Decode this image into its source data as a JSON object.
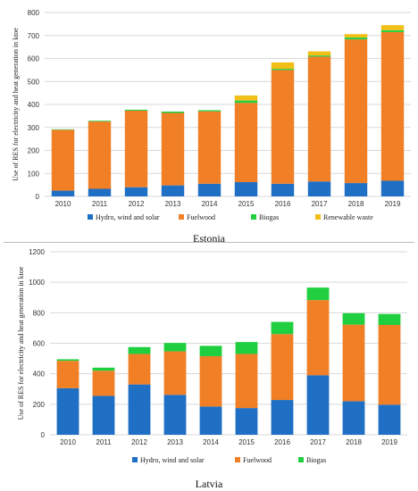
{
  "figure": {
    "captions": [
      "Estonia",
      "Latvia"
    ]
  },
  "colors": {
    "Hydro, wind and solar": "#1f6fc5",
    "Fuelwood": "#f07f26",
    "Biogas": "#1fcf3f",
    "Renewable waste": "#f2bf19"
  },
  "chart_data": [
    {
      "type": "bar",
      "stacked": true,
      "caption": "Estonia",
      "categories": [
        "2010",
        "2011",
        "2012",
        "2013",
        "2014",
        "2015",
        "2016",
        "2017",
        "2018",
        "2019"
      ],
      "series": [
        {
          "name": "Hydro, wind and solar",
          "values": [
            25,
            33,
            40,
            48,
            55,
            62,
            55,
            65,
            58,
            68
          ]
        },
        {
          "name": "Fuelwood",
          "values": [
            265,
            293,
            333,
            315,
            315,
            345,
            495,
            543,
            625,
            647
          ]
        },
        {
          "name": "Biogas",
          "values": [
            2,
            3,
            4,
            6,
            5,
            10,
            5,
            5,
            8,
            8
          ]
        },
        {
          "name": "Renewable waste",
          "values": [
            0,
            0,
            0,
            0,
            0,
            22,
            28,
            18,
            15,
            22
          ]
        }
      ],
      "ylabel": "Use of RES for electricity and heat generation in ktoe",
      "xlabel": "",
      "ylim": [
        0,
        800
      ],
      "yticks": [
        0,
        100,
        200,
        300,
        400,
        500,
        600,
        700,
        800
      ],
      "grid": true,
      "legend": "bottom"
    },
    {
      "type": "bar",
      "stacked": true,
      "caption": "Latvia",
      "categories": [
        "2010",
        "2011",
        "2012",
        "2013",
        "2014",
        "2015",
        "2016",
        "2017",
        "2018",
        "2019"
      ],
      "series": [
        {
          "name": "Hydro, wind and solar",
          "values": [
            305,
            255,
            330,
            262,
            185,
            175,
            228,
            390,
            220,
            197
          ]
        },
        {
          "name": "Fuelwood",
          "values": [
            180,
            165,
            200,
            285,
            330,
            355,
            432,
            493,
            502,
            523
          ]
        },
        {
          "name": "Biogas",
          "values": [
            10,
            20,
            45,
            55,
            68,
            78,
            80,
            82,
            75,
            72
          ]
        }
      ],
      "ylabel": "Use of RES for electricity and heat generation in ktoe",
      "xlabel": "",
      "ylim": [
        0,
        1200
      ],
      "yticks": [
        0,
        200,
        400,
        600,
        800,
        1000,
        1200
      ],
      "grid": true,
      "legend": "bottom"
    }
  ]
}
